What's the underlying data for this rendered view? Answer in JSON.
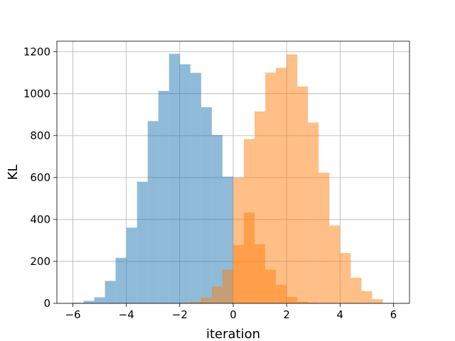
{
  "chart_data": {
    "type": "histogram",
    "title": "",
    "xlabel": "iteration",
    "ylabel": "KL",
    "xlim": [
      -6.6,
      6.6
    ],
    "ylim": [
      0,
      1250
    ],
    "grid": true,
    "legend": "none",
    "xticks": [
      -6,
      -4,
      -2,
      0,
      2,
      4,
      6
    ],
    "xtick_labels": [
      "−6",
      "−4",
      "−2",
      "0",
      "2",
      "4",
      "6"
    ],
    "yticks": [
      0,
      200,
      400,
      600,
      800,
      1000,
      1200
    ],
    "ytick_labels": [
      "0",
      "200",
      "400",
      "600",
      "800",
      "1000",
      "1200"
    ],
    "bin_width": 0.4,
    "series": [
      {
        "color": "#1f77b4",
        "opacity": 0.5,
        "bin_edges_start": -6.0,
        "values": [
          3,
          12,
          29,
          107,
          217,
          361,
          580,
          869,
          1013,
          1190,
          1140,
          1099,
          935,
          803,
          604,
          0
        ]
      },
      {
        "color": "#ff7f0e",
        "opacity": 0.5,
        "bin_edges_start": -2.0,
        "values": [
          2,
          8,
          28,
          80,
          160,
          278,
          433,
          281,
          160,
          88,
          30,
          8,
          3,
          1
        ]
      },
      {
        "color": "#ff7f0e",
        "opacity": 0.5,
        "bin_edges_start": 0.0,
        "values": [
          600,
          783,
          915,
          1100,
          1123,
          1187,
          1034,
          862,
          623,
          371,
          240,
          122,
          58,
          20,
          2
        ]
      }
    ]
  }
}
